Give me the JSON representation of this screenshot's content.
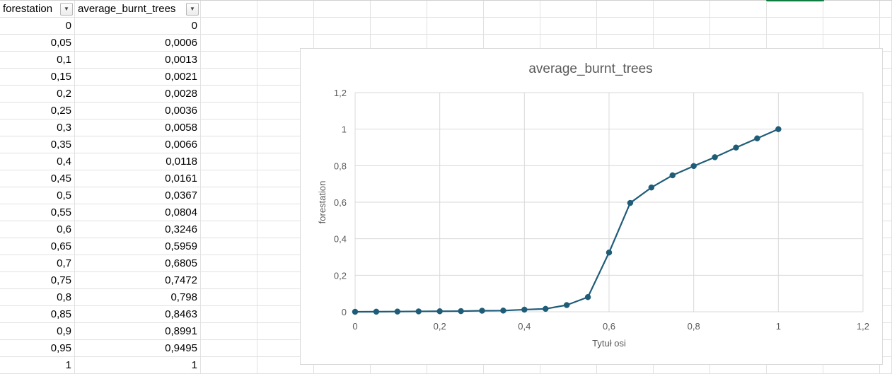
{
  "sheet": {
    "columns": [
      {
        "header": "forestation"
      },
      {
        "header": "average_burnt_trees"
      }
    ],
    "filter_icon": "dropdown-arrow-icon",
    "rows": [
      [
        "0",
        "0"
      ],
      [
        "0,05",
        "0,0006"
      ],
      [
        "0,1",
        "0,0013"
      ],
      [
        "0,15",
        "0,0021"
      ],
      [
        "0,2",
        "0,0028"
      ],
      [
        "0,25",
        "0,0036"
      ],
      [
        "0,3",
        "0,0058"
      ],
      [
        "0,35",
        "0,0066"
      ],
      [
        "0,4",
        "0,0118"
      ],
      [
        "0,45",
        "0,0161"
      ],
      [
        "0,5",
        "0,0367"
      ],
      [
        "0,55",
        "0,0804"
      ],
      [
        "0,6",
        "0,3246"
      ],
      [
        "0,65",
        "0,5959"
      ],
      [
        "0,7",
        "0,6805"
      ],
      [
        "0,75",
        "0,7472"
      ],
      [
        "0,8",
        "0,798"
      ],
      [
        "0,85",
        "0,8463"
      ],
      [
        "0,9",
        "0,8991"
      ],
      [
        "0,95",
        "0,9495"
      ],
      [
        "1",
        "1"
      ]
    ]
  },
  "chart_data": {
    "type": "scatter",
    "title": "average_burnt_trees",
    "xlabel": "Tytuł osi",
    "ylabel": "forestation",
    "xlim": [
      0,
      1.2
    ],
    "ylim": [
      0,
      1.2
    ],
    "xticks": [
      "0",
      "0,2",
      "0,4",
      "0,6",
      "0,8",
      "1",
      "1,2"
    ],
    "yticks": [
      "0",
      "0,2",
      "0,4",
      "0,6",
      "0,8",
      "1",
      "1,2"
    ],
    "grid": true,
    "series_color": "#1f5c78",
    "x": [
      0,
      0.05,
      0.1,
      0.15,
      0.2,
      0.25,
      0.3,
      0.35,
      0.4,
      0.45,
      0.5,
      0.55,
      0.6,
      0.65,
      0.7,
      0.75,
      0.8,
      0.85,
      0.9,
      0.95,
      1
    ],
    "y": [
      0,
      0.0006,
      0.0013,
      0.0021,
      0.0028,
      0.0036,
      0.0058,
      0.0066,
      0.0118,
      0.0161,
      0.0367,
      0.0804,
      0.3246,
      0.5959,
      0.6805,
      0.7472,
      0.798,
      0.8463,
      0.8991,
      0.9495,
      1
    ]
  }
}
